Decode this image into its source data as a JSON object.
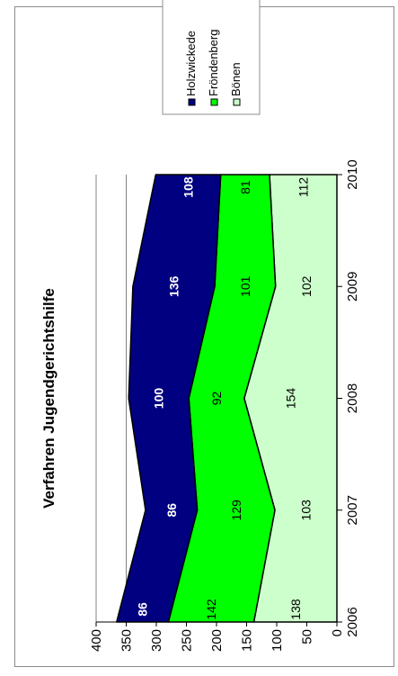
{
  "chart_data": {
    "type": "area",
    "stacked": true,
    "orientation": "rotated-90-ccw",
    "title": "Verfahren Jugendgerichtshilfe",
    "x": [
      "2006",
      "2007",
      "2008",
      "2009",
      "2010"
    ],
    "series": [
      {
        "name": "Bönen",
        "values": [
          138,
          103,
          154,
          102,
          112
        ],
        "color": "#ccffcc",
        "label_color": "#000000",
        "label_bold": false
      },
      {
        "name": "Fröndenberg",
        "values": [
          142,
          129,
          92,
          101,
          81
        ],
        "color": "#00ff00",
        "label_color": "#000000",
        "label_bold": false
      },
      {
        "name": "Holzwickede",
        "values": [
          86,
          86,
          100,
          136,
          108
        ],
        "color": "#000080",
        "label_color": "#ffffff",
        "label_bold": true
      }
    ],
    "legend_order": [
      "Holzwickede",
      "Fröndenberg",
      "Bönen"
    ],
    "ylim": [
      0,
      400
    ],
    "yticks": [
      "0",
      "50",
      "100",
      "150",
      "200",
      "250",
      "300",
      "350",
      "400"
    ],
    "grid": true,
    "legend_position": "right"
  }
}
